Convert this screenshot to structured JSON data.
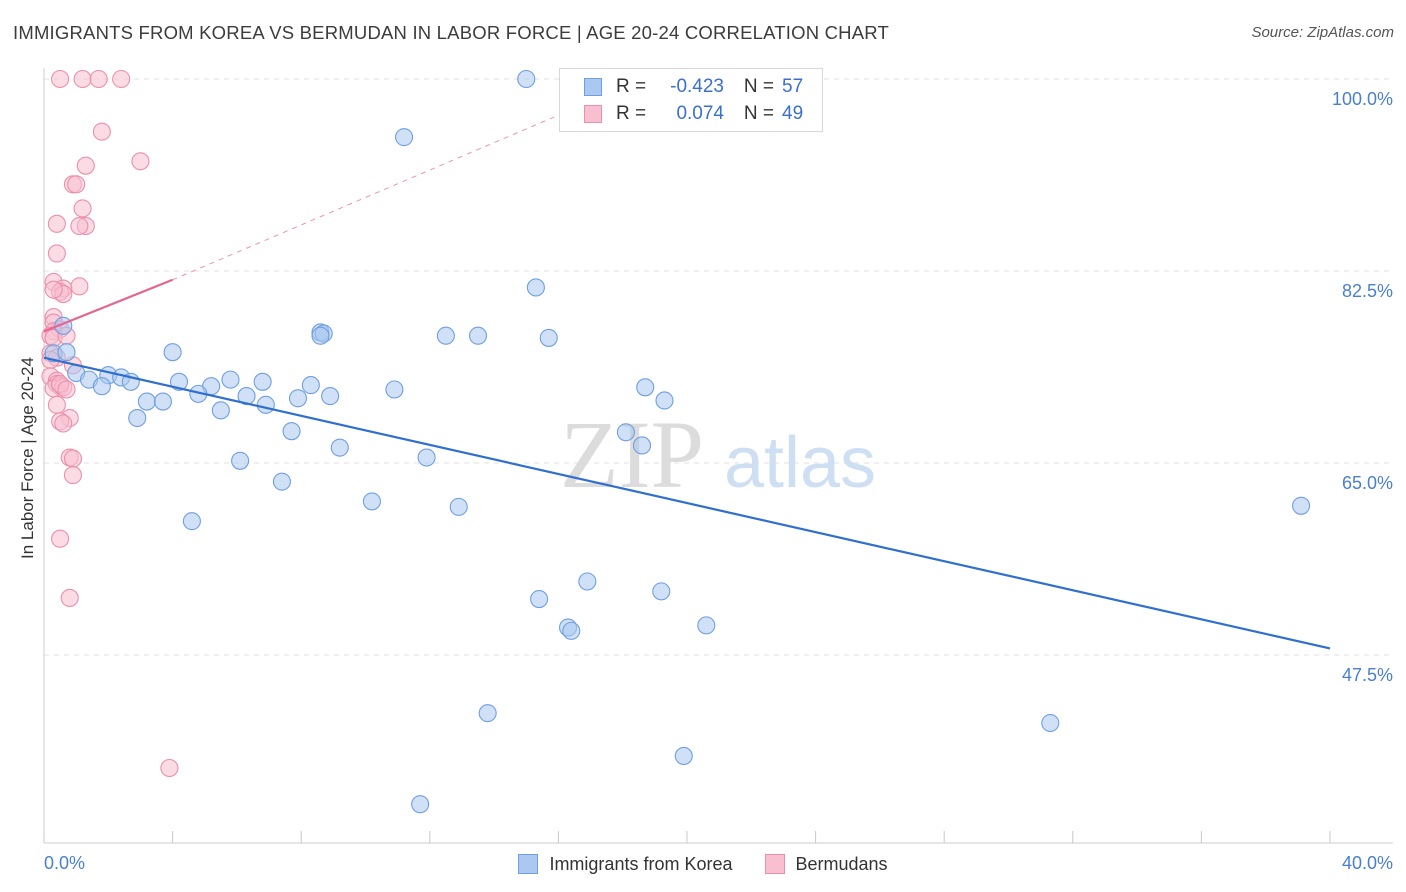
{
  "title": "IMMIGRANTS FROM KOREA VS BERMUDAN IN LABOR FORCE | AGE 20-24 CORRELATION CHART",
  "source": "Source: ZipAtlas.com",
  "watermark": {
    "zip": "ZIP",
    "atlas": "atlas"
  },
  "colors": {
    "korea_fill": "#aac8f0",
    "korea_stroke": "#6f9fe0",
    "korea_line": "#2f6fd0",
    "bermudan_fill": "#f7bfcf",
    "bermudan_stroke": "#ec8fab",
    "bermudan_line": "#e46592",
    "tick_text": "#4a7fd0",
    "grid": "#e2e2e2"
  },
  "legend": {
    "rows": [
      {
        "series": "korea",
        "r_label": "R =",
        "r_value": "-0.423",
        "n_label": "N =",
        "n_value": "57"
      },
      {
        "series": "bermudan",
        "r_label": "R =",
        "r_value": "0.074",
        "n_label": "N =",
        "n_value": "49"
      }
    ]
  },
  "chart_data": {
    "type": "scatter",
    "title": "IMMIGRANTS FROM KOREA VS BERMUDAN IN LABOR FORCE | AGE 20-24 CORRELATION CHART",
    "xlabel": "",
    "ylabel": "In Labor Force | Age 20-24",
    "xlim": [
      0,
      40
    ],
    "ylim": [
      32,
      100.5
    ],
    "x_tick_labels": [
      "0.0%",
      "40.0%"
    ],
    "y_ticks": [
      {
        "value": 100.0,
        "label": "100.0%"
      },
      {
        "value": 82.5,
        "label": "82.5%"
      },
      {
        "value": 65.0,
        "label": "65.0%"
      },
      {
        "value": 47.5,
        "label": "47.5%"
      }
    ],
    "grid": true,
    "legend_position": "top-center",
    "series": [
      {
        "name": "Immigrants from Korea",
        "key": "korea",
        "r": -0.423,
        "n": 57,
        "trend": {
          "x": [
            0.0,
            40.0
          ],
          "y": [
            74.6,
            48.1
          ]
        },
        "points": [
          [
            15.0,
            100.0
          ],
          [
            11.2,
            94.7
          ],
          [
            15.3,
            81.0
          ],
          [
            0.6,
            77.5
          ],
          [
            0.3,
            75.0
          ],
          [
            0.7,
            75.1
          ],
          [
            4.0,
            75.1
          ],
          [
            8.6,
            76.9
          ],
          [
            8.7,
            76.8
          ],
          [
            8.6,
            76.6
          ],
          [
            12.5,
            76.6
          ],
          [
            13.5,
            76.6
          ],
          [
            15.7,
            76.4
          ],
          [
            1.0,
            73.2
          ],
          [
            1.4,
            72.6
          ],
          [
            2.0,
            73.0
          ],
          [
            2.4,
            72.8
          ],
          [
            2.7,
            72.4
          ],
          [
            4.2,
            72.4
          ],
          [
            5.8,
            72.6
          ],
          [
            6.8,
            72.4
          ],
          [
            5.2,
            72.0
          ],
          [
            8.3,
            72.1
          ],
          [
            10.9,
            71.7
          ],
          [
            4.8,
            71.3
          ],
          [
            6.3,
            71.1
          ],
          [
            8.9,
            71.1
          ],
          [
            7.9,
            70.9
          ],
          [
            3.2,
            70.6
          ],
          [
            3.7,
            70.6
          ],
          [
            6.9,
            70.3
          ],
          [
            5.5,
            69.8
          ],
          [
            2.9,
            69.1
          ],
          [
            1.8,
            72.0
          ],
          [
            18.7,
            71.9
          ],
          [
            19.3,
            70.7
          ],
          [
            7.7,
            67.9
          ],
          [
            18.1,
            67.8
          ],
          [
            18.6,
            66.6
          ],
          [
            9.2,
            66.4
          ],
          [
            6.1,
            65.2
          ],
          [
            11.9,
            65.5
          ],
          [
            7.4,
            63.3
          ],
          [
            10.2,
            61.5
          ],
          [
            12.9,
            61.0
          ],
          [
            39.1,
            61.1
          ],
          [
            4.6,
            59.7
          ],
          [
            16.9,
            54.2
          ],
          [
            15.4,
            52.6
          ],
          [
            19.2,
            53.3
          ],
          [
            20.6,
            50.2
          ],
          [
            16.3,
            50.0
          ],
          [
            16.4,
            49.7
          ],
          [
            13.8,
            42.2
          ],
          [
            31.3,
            41.3
          ],
          [
            19.9,
            38.3
          ],
          [
            11.7,
            33.9
          ]
        ]
      },
      {
        "name": "Bermudans",
        "key": "bermudan",
        "r": 0.074,
        "n": 49,
        "trend": {
          "x": [
            0.0,
            4.0
          ],
          "y": [
            77.0,
            81.7
          ],
          "extended": {
            "x": [
              4.0,
              16.0
            ],
            "y": [
              81.7,
              96.7
            ]
          }
        },
        "points": [
          [
            0.5,
            100.0
          ],
          [
            1.2,
            100.0
          ],
          [
            1.7,
            100.0
          ],
          [
            2.4,
            100.0
          ],
          [
            1.8,
            95.2
          ],
          [
            3.0,
            92.5
          ],
          [
            1.3,
            92.1
          ],
          [
            0.9,
            90.4
          ],
          [
            1.0,
            90.4
          ],
          [
            1.2,
            88.2
          ],
          [
            0.4,
            86.8
          ],
          [
            1.3,
            86.6
          ],
          [
            1.1,
            86.6
          ],
          [
            0.4,
            84.1
          ],
          [
            0.3,
            81.5
          ],
          [
            1.1,
            81.1
          ],
          [
            0.6,
            80.9
          ],
          [
            0.5,
            80.6
          ],
          [
            0.6,
            80.4
          ],
          [
            0.3,
            80.8
          ],
          [
            0.3,
            78.3
          ],
          [
            0.3,
            77.8
          ],
          [
            0.5,
            77.2
          ],
          [
            0.3,
            77.0
          ],
          [
            0.2,
            76.6
          ],
          [
            0.3,
            76.4
          ],
          [
            0.7,
            76.6
          ],
          [
            0.2,
            75.0
          ],
          [
            0.4,
            74.6
          ],
          [
            0.2,
            74.4
          ],
          [
            0.9,
            73.9
          ],
          [
            0.2,
            72.9
          ],
          [
            0.4,
            72.5
          ],
          [
            0.4,
            72.2
          ],
          [
            0.5,
            72.0
          ],
          [
            0.3,
            71.8
          ],
          [
            0.6,
            71.9
          ],
          [
            0.5,
            72.2
          ],
          [
            0.7,
            71.7
          ],
          [
            0.4,
            70.3
          ],
          [
            0.8,
            69.1
          ],
          [
            0.5,
            68.8
          ],
          [
            0.6,
            68.6
          ],
          [
            0.8,
            65.5
          ],
          [
            0.9,
            65.4
          ],
          [
            0.9,
            63.9
          ],
          [
            0.5,
            58.1
          ],
          [
            0.8,
            52.7
          ],
          [
            3.9,
            37.2
          ]
        ]
      }
    ]
  }
}
